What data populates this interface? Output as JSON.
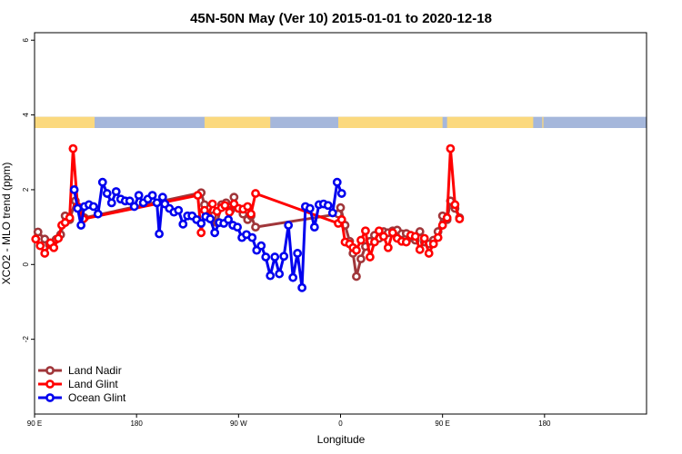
{
  "chart_data": {
    "type": "line",
    "title": "45N-50N May (Ver 10)   2015-01-01 to 2020-12-18",
    "xlabel": "Longitude",
    "ylabel": "XCO2 - MLO trend (ppm)",
    "x_axis": {
      "note": "Longitude axis spanning 90 E eastward through the dateline and round to 180 again (540 degrees of plotting space)",
      "range": [
        90,
        630
      ],
      "ticks": [
        {
          "value": 90,
          "label": "90 E"
        },
        {
          "value": 180,
          "label": "180"
        },
        {
          "value": 270,
          "label": "90 W"
        },
        {
          "value": 360,
          "label": "0"
        },
        {
          "value": 450,
          "label": "90 E"
        },
        {
          "value": 540,
          "label": "180"
        }
      ]
    },
    "y_axis": {
      "range": [
        -4,
        6.2
      ],
      "ticks": [
        -2,
        0,
        2,
        4,
        6
      ]
    },
    "land_ocean_strip": {
      "y_range": [
        3.65,
        3.95
      ],
      "land_color": "#FBD97E",
      "ocean_color": "#A5B7DB",
      "land_segments": [
        [
          90,
          143
        ],
        [
          240,
          298
        ],
        [
          358,
          450
        ],
        [
          454,
          530
        ],
        [
          538,
          539
        ]
      ]
    },
    "series": [
      {
        "name": "Land Nadir",
        "color": "#A0363A",
        "points": [
          [
            93,
            0.87
          ],
          [
            99,
            0.68
          ],
          [
            103,
            0.53
          ],
          [
            109,
            0.67
          ],
          [
            113,
            0.8
          ],
          [
            117,
            1.3
          ],
          [
            121,
            1.2
          ],
          [
            126,
            1.7
          ],
          [
            130,
            1.5
          ],
          [
            134,
            1.25
          ],
          [
            237,
            1.92
          ],
          [
            240,
            1.6
          ],
          [
            244,
            1.25
          ],
          [
            247,
            1.3
          ],
          [
            251,
            1.12
          ],
          [
            255,
            1.6
          ],
          [
            259,
            1.65
          ],
          [
            263,
            1.45
          ],
          [
            266,
            1.8
          ],
          [
            270,
            1.5
          ],
          [
            274,
            1.35
          ],
          [
            278,
            1.2
          ],
          [
            281,
            1.3
          ],
          [
            285,
            1.0
          ],
          [
            358,
            1.35
          ],
          [
            360,
            1.52
          ],
          [
            364,
            1.05
          ],
          [
            368,
            0.62
          ],
          [
            371,
            0.3
          ],
          [
            374,
            -0.32
          ],
          [
            378,
            0.15
          ],
          [
            382,
            0.48
          ],
          [
            386,
            0.62
          ],
          [
            390,
            0.78
          ],
          [
            394,
            0.7
          ],
          [
            398,
            0.88
          ],
          [
            402,
            0.85
          ],
          [
            406,
            0.9
          ],
          [
            410,
            0.92
          ],
          [
            414,
            0.82
          ],
          [
            418,
            0.83
          ],
          [
            422,
            0.72
          ],
          [
            426,
            0.65
          ],
          [
            430,
            0.88
          ],
          [
            434,
            0.6
          ],
          [
            438,
            0.55
          ],
          [
            442,
            0.65
          ],
          [
            446,
            0.88
          ],
          [
            450,
            1.3
          ],
          [
            454,
            1.2
          ],
          [
            457,
            1.7
          ],
          [
            461,
            1.5
          ],
          [
            465,
            1.25
          ]
        ]
      },
      {
        "name": "Land Glint",
        "color": "#FF0000",
        "points": [
          [
            91,
            0.68
          ],
          [
            95,
            0.5
          ],
          [
            99,
            0.3
          ],
          [
            104,
            0.58
          ],
          [
            107,
            0.45
          ],
          [
            111,
            0.7
          ],
          [
            114,
            1.05
          ],
          [
            117,
            1.12
          ],
          [
            121,
            1.25
          ],
          [
            124,
            3.1
          ],
          [
            128,
            1.55
          ],
          [
            133,
            1.22
          ],
          [
            234,
            1.85
          ],
          [
            237,
            0.85
          ],
          [
            240,
            1.45
          ],
          [
            243,
            1.3
          ],
          [
            247,
            1.62
          ],
          [
            251,
            1.42
          ],
          [
            255,
            1.52
          ],
          [
            258,
            1.58
          ],
          [
            262,
            1.4
          ],
          [
            266,
            1.62
          ],
          [
            270,
            1.5
          ],
          [
            274,
            1.48
          ],
          [
            278,
            1.55
          ],
          [
            281,
            1.35
          ],
          [
            285,
            1.9
          ],
          [
            358,
            1.1
          ],
          [
            361,
            1.2
          ],
          [
            364,
            0.6
          ],
          [
            368,
            0.55
          ],
          [
            371,
            0.45
          ],
          [
            374,
            0.38
          ],
          [
            378,
            0.65
          ],
          [
            382,
            0.9
          ],
          [
            386,
            0.2
          ],
          [
            390,
            0.6
          ],
          [
            394,
            0.9
          ],
          [
            398,
            0.75
          ],
          [
            402,
            0.45
          ],
          [
            406,
            0.85
          ],
          [
            410,
            0.7
          ],
          [
            414,
            0.62
          ],
          [
            418,
            0.6
          ],
          [
            422,
            0.78
          ],
          [
            426,
            0.75
          ],
          [
            430,
            0.4
          ],
          [
            434,
            0.7
          ],
          [
            438,
            0.3
          ],
          [
            442,
            0.55
          ],
          [
            446,
            0.72
          ],
          [
            450,
            1.05
          ],
          [
            454,
            1.25
          ],
          [
            457,
            3.1
          ],
          [
            461,
            1.6
          ],
          [
            465,
            1.22
          ]
        ]
      },
      {
        "name": "Ocean Glint",
        "color": "#0000EE",
        "points": [
          [
            125,
            2.0
          ],
          [
            128,
            1.5
          ],
          [
            131,
            1.05
          ],
          [
            134,
            1.55
          ],
          [
            138,
            1.6
          ],
          [
            142,
            1.55
          ],
          [
            146,
            1.35
          ],
          [
            150,
            2.2
          ],
          [
            154,
            1.9
          ],
          [
            158,
            1.65
          ],
          [
            162,
            1.95
          ],
          [
            166,
            1.75
          ],
          [
            170,
            1.7
          ],
          [
            174,
            1.7
          ],
          [
            178,
            1.55
          ],
          [
            182,
            1.85
          ],
          [
            186,
            1.65
          ],
          [
            190,
            1.75
          ],
          [
            194,
            1.85
          ],
          [
            198,
            1.65
          ],
          [
            200,
            0.82
          ],
          [
            203,
            1.8
          ],
          [
            205,
            1.62
          ],
          [
            209,
            1.5
          ],
          [
            213,
            1.4
          ],
          [
            217,
            1.45
          ],
          [
            221,
            1.08
          ],
          [
            225,
            1.3
          ],
          [
            229,
            1.3
          ],
          [
            233,
            1.2
          ],
          [
            237,
            1.1
          ],
          [
            241,
            1.28
          ],
          [
            245,
            1.22
          ],
          [
            249,
            0.85
          ],
          [
            253,
            1.12
          ],
          [
            257,
            1.1
          ],
          [
            261,
            1.2
          ],
          [
            265,
            1.05
          ],
          [
            269,
            1.0
          ],
          [
            273,
            0.72
          ],
          [
            277,
            0.8
          ],
          [
            282,
            0.72
          ],
          [
            286,
            0.38
          ],
          [
            290,
            0.5
          ],
          [
            294,
            0.2
          ],
          [
            298,
            -0.3
          ],
          [
            302,
            0.2
          ],
          [
            306,
            -0.25
          ],
          [
            310,
            0.22
          ],
          [
            314,
            1.05
          ],
          [
            318,
            -0.35
          ],
          [
            322,
            0.3
          ],
          [
            326,
            -0.62
          ],
          [
            329,
            1.55
          ],
          [
            333,
            1.5
          ],
          [
            337,
            1.0
          ],
          [
            341,
            1.6
          ],
          [
            345,
            1.62
          ],
          [
            349,
            1.58
          ],
          [
            353,
            1.38
          ],
          [
            357,
            2.2
          ],
          [
            361,
            1.9
          ]
        ]
      }
    ],
    "legend": {
      "placement": "bottom-left",
      "entries": [
        "Land Nadir",
        "Land Glint",
        "Ocean Glint"
      ]
    }
  }
}
